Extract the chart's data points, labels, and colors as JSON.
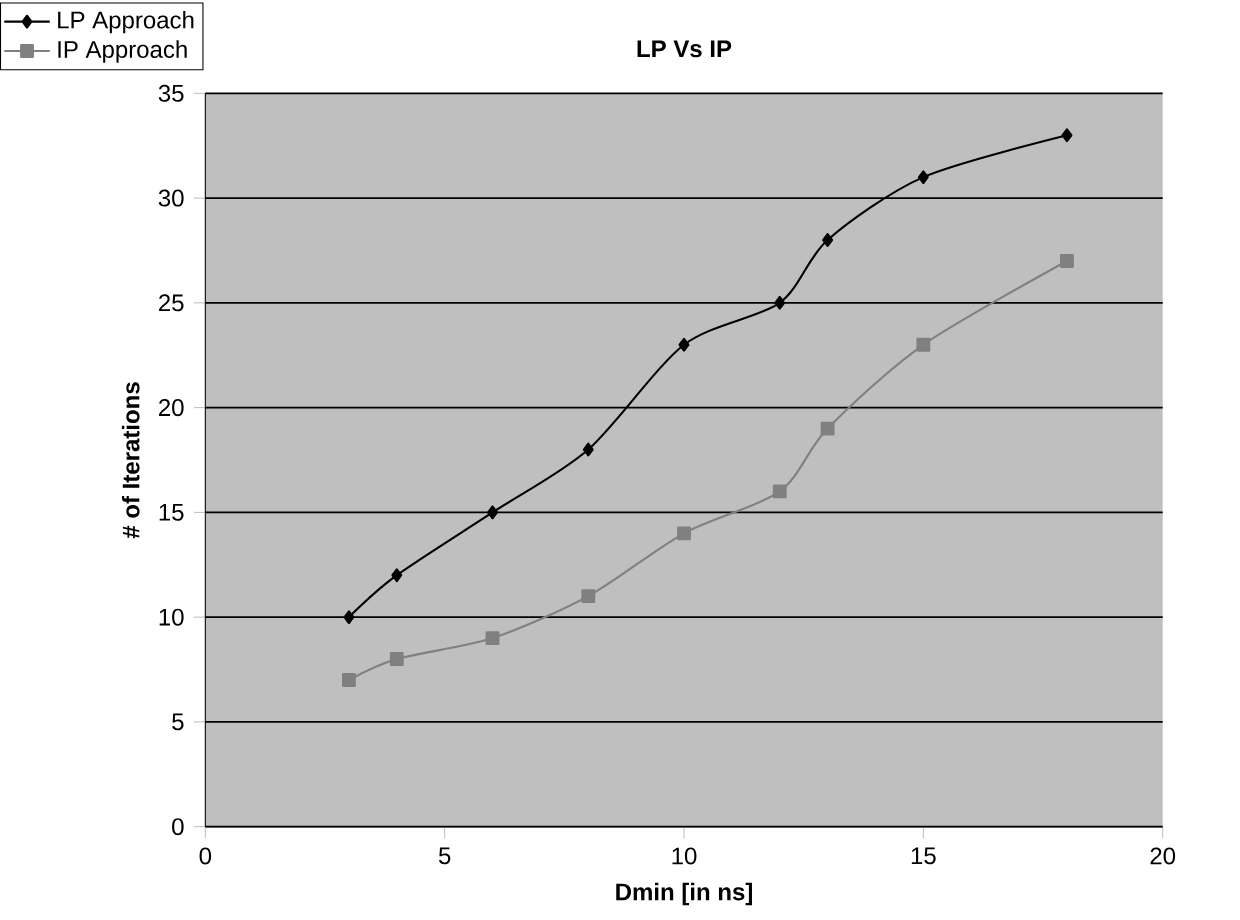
{
  "chart_data": {
    "type": "line",
    "title": "LP Vs IP",
    "xlabel": "Dmin [in ns]",
    "ylabel": "# of Iterations",
    "series": [
      {
        "name": "LP Approach",
        "color": "#000000",
        "marker": "diamond",
        "x": [
          3,
          4,
          6,
          8,
          10,
          12,
          13,
          15,
          18
        ],
        "values": [
          10,
          12,
          15,
          18,
          23,
          25,
          28,
          31,
          33
        ]
      },
      {
        "name": "IP Approach",
        "color": "#808080",
        "marker": "square",
        "x": [
          3,
          4,
          6,
          8,
          10,
          12,
          13,
          15,
          18
        ],
        "values": [
          7,
          8,
          9,
          11,
          14,
          16,
          19,
          23,
          27
        ]
      }
    ],
    "xlim": [
      0,
      20
    ],
    "ylim": [
      0,
      35
    ],
    "xticks": [
      0,
      5,
      10,
      15,
      20
    ],
    "yticks": [
      0,
      5,
      10,
      15,
      20,
      25,
      30,
      35
    ],
    "grid": "y",
    "legend": "top left"
  }
}
